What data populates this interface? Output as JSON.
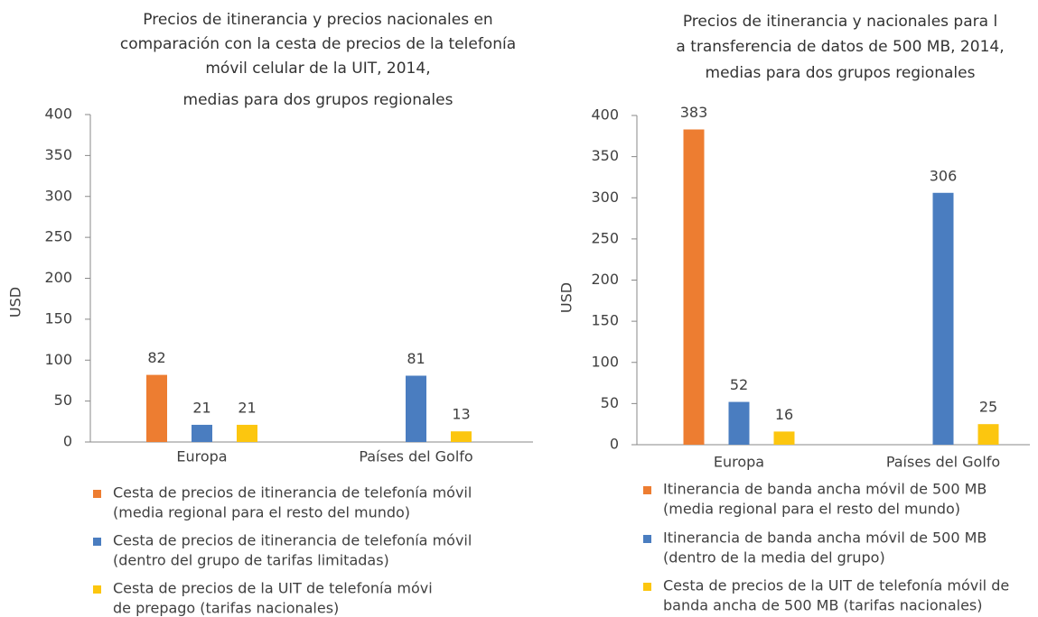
{
  "chart_data": [
    {
      "type": "bar",
      "title": [
        "Precios de itinerancia y precios nacionales en",
        "comparación con la cesta de precios de la telefonía",
        "móvil celular de la UIT, 2014,",
        "medias para dos grupos regionales"
      ],
      "y_label": "USD",
      "categories": [
        "Europa",
        "Países del Golfo"
      ],
      "series": [
        {
          "name": [
            "Cesta de precios de itinerancia de telefonía móvil",
            "(media regional para el resto del mundo)"
          ],
          "color": "#ed7d31",
          "values": [
            82,
            null
          ]
        },
        {
          "name": [
            "Cesta de precios de itinerancia de telefonía móvil",
            "(dentro del grupo de tarifas limitadas)"
          ],
          "color": "#4a7dc0",
          "values": [
            21,
            81
          ]
        },
        {
          "name": [
            "Cesta de precios de la UIT de telefonía móvi",
            "de prepago (tarifas nacionales)"
          ],
          "color": "#fcc60f",
          "values": [
            21,
            13
          ]
        }
      ],
      "ylim": [
        0,
        400
      ],
      "yticks": [
        0,
        50,
        100,
        150,
        200,
        250,
        300,
        350,
        400
      ]
    },
    {
      "type": "bar",
      "title": [
        "Precios de itinerancia y nacionales para l",
        "a transferencia de datos de 500 MB, 2014,",
        "medias para dos grupos regionales"
      ],
      "y_label": "USD",
      "categories": [
        "Europa",
        "Países del Golfo"
      ],
      "series": [
        {
          "name": [
            "Itinerancia de banda ancha móvil de 500 MB",
            "(media regional para el resto del mundo)"
          ],
          "color": "#ed7d31",
          "values": [
            383,
            null
          ]
        },
        {
          "name": [
            "Itinerancia de banda ancha móvil de 500 MB",
            "(dentro de la media del grupo)"
          ],
          "color": "#4a7dc0",
          "values": [
            52,
            306
          ]
        },
        {
          "name": [
            "Cesta de precios de la UIT de telefonía móvil de",
            "banda ancha de 500 MB (tarifas nacionales)"
          ],
          "color": "#fcc60f",
          "values": [
            16,
            25
          ]
        }
      ],
      "ylim": [
        0,
        400
      ],
      "yticks": [
        0,
        50,
        100,
        150,
        200,
        250,
        300,
        350,
        400
      ]
    }
  ]
}
